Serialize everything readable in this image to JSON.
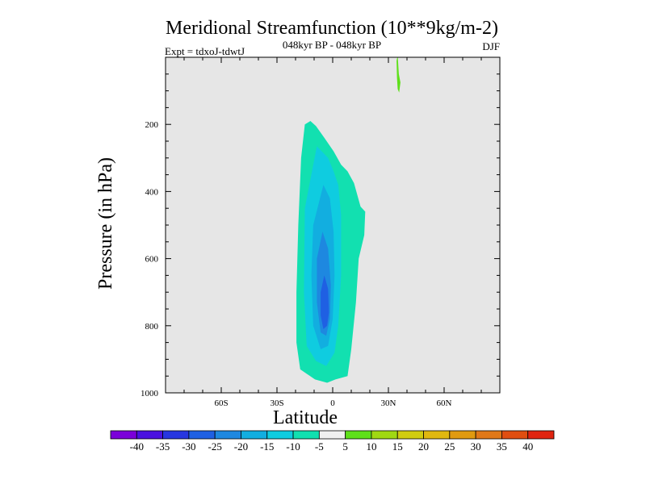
{
  "chart_data": {
    "type": "filled-contour",
    "title": "Meridional Streamfunction (10**9kg/m-2)",
    "subtitle": "048kyr BP - 048kyr BP",
    "left_label": "Expt = tdxoJ-tdwtJ",
    "right_label": "DJF",
    "xlabel": "Latitude",
    "ylabel": "Pressure (in hPa)",
    "xlim": [
      -90,
      90
    ],
    "ylim": [
      1000,
      0
    ],
    "xticks": [
      {
        "value": -60,
        "label": "60S"
      },
      {
        "value": -30,
        "label": "30S"
      },
      {
        "value": 0,
        "label": "0"
      },
      {
        "value": 30,
        "label": "30N"
      },
      {
        "value": 60,
        "label": "60N"
      }
    ],
    "yticks": [
      {
        "value": 200,
        "label": "200"
      },
      {
        "value": 400,
        "label": "400"
      },
      {
        "value": 600,
        "label": "600"
      },
      {
        "value": 800,
        "label": "800"
      },
      {
        "value": 1000,
        "label": "1000"
      }
    ],
    "missing_color": "#e6e6e6",
    "contour_levels": [
      "-40",
      "-35",
      "-30",
      "-25",
      "-20",
      "-15",
      "-10",
      "-5",
      "5",
      "10",
      "15",
      "20",
      "25",
      "30",
      "35",
      "40"
    ],
    "colorbar_colors": [
      "#7b00d9",
      "#4a12e0",
      "#2736e0",
      "#1f60e3",
      "#1e88e0",
      "#12aee0",
      "#0fcce0",
      "#12e0b0",
      "#f0f0f0",
      "#5ee01a",
      "#a0d812",
      "#d0cc10",
      "#e0b810",
      "#e09a10",
      "#e07818",
      "#e04e10",
      "#e02410"
    ],
    "regions": [
      {
        "name": "cell-outer-10-to-5",
        "level": "-10 to -5",
        "color": "#12e0b0",
        "polygon": [
          [
            -15.0,
            200
          ],
          [
            -12.0,
            190
          ],
          [
            -9.0,
            205
          ],
          [
            -4.5,
            240
          ],
          [
            0.5,
            280
          ],
          [
            3.5,
            310
          ],
          [
            4.5,
            320
          ],
          [
            8.0,
            340
          ],
          [
            11.5,
            375
          ],
          [
            15.0,
            445
          ],
          [
            17.5,
            460
          ],
          [
            17.0,
            530
          ],
          [
            14.0,
            600
          ],
          [
            12.5,
            730
          ],
          [
            10.0,
            870
          ],
          [
            8.0,
            950
          ],
          [
            1.5,
            960
          ],
          [
            -3.0,
            970
          ],
          [
            -9.5,
            960
          ],
          [
            -17.5,
            930
          ],
          [
            -19.5,
            850
          ],
          [
            -19.5,
            700
          ],
          [
            -18.5,
            500
          ],
          [
            -17.0,
            300
          ]
        ]
      },
      {
        "name": "cell-level-15-to-10",
        "level": "-15 to -10",
        "color": "#0fcce0",
        "polygon": [
          [
            -8.5,
            265
          ],
          [
            -2.5,
            300
          ],
          [
            0.5,
            340
          ],
          [
            3.0,
            380
          ],
          [
            4.5,
            470
          ],
          [
            4.5,
            650
          ],
          [
            3.0,
            800
          ],
          [
            1.0,
            880
          ],
          [
            -3.5,
            920
          ],
          [
            -9.0,
            905
          ],
          [
            -14.0,
            860
          ],
          [
            -15.5,
            700
          ],
          [
            -15.0,
            450
          ]
        ]
      },
      {
        "name": "cell-level-20-to-15",
        "level": "-20 to -15",
        "color": "#12aee0",
        "polygon": [
          [
            -5.0,
            380
          ],
          [
            -1.5,
            420
          ],
          [
            0.5,
            520
          ],
          [
            1.0,
            650
          ],
          [
            0.0,
            780
          ],
          [
            -2.5,
            860
          ],
          [
            -6.5,
            870
          ],
          [
            -10.5,
            800
          ],
          [
            -11.5,
            650
          ],
          [
            -10.5,
            500
          ]
        ]
      },
      {
        "name": "cell-level-25-to-20",
        "level": "-25 to -20",
        "color": "#1e88e0",
        "polygon": [
          [
            -5.5,
            520
          ],
          [
            -2.5,
            570
          ],
          [
            -1.0,
            680
          ],
          [
            -1.5,
            780
          ],
          [
            -3.5,
            830
          ],
          [
            -6.5,
            820
          ],
          [
            -8.5,
            730
          ],
          [
            -8.5,
            600
          ]
        ]
      },
      {
        "name": "cell-core-30-to-25",
        "level": "-30 to -25",
        "color": "#1f60e3",
        "polygon": [
          [
            -4.5,
            650
          ],
          [
            -2.5,
            690
          ],
          [
            -2.0,
            760
          ],
          [
            -3.0,
            800
          ],
          [
            -5.0,
            810
          ],
          [
            -6.5,
            770
          ],
          [
            -6.5,
            700
          ]
        ]
      },
      {
        "name": "cell-positive-5-to-10",
        "level": "5 to 10",
        "color": "#5ee01a",
        "polygon": [
          [
            35.0,
            -5
          ],
          [
            35.6,
            50
          ],
          [
            36.5,
            75
          ],
          [
            35.8,
            105
          ],
          [
            35.0,
            95
          ],
          [
            34.6,
            60
          ],
          [
            34.4,
            10
          ]
        ]
      }
    ]
  }
}
